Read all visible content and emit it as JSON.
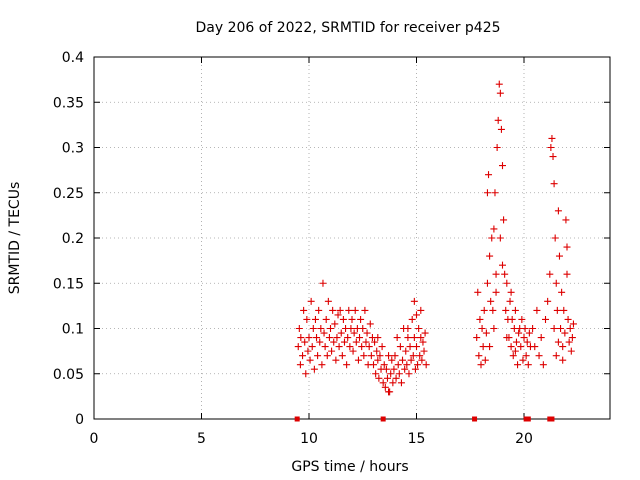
{
  "chart_data": {
    "type": "scatter",
    "title": "Day 206 of 2022, SRMTID for receiver p425",
    "xlabel": "GPS time / hours",
    "ylabel": "SRMTID / TECUs",
    "xlim": [
      0,
      24
    ],
    "ylim": [
      0,
      0.4
    ],
    "xticks": [
      0,
      5,
      10,
      15,
      20
    ],
    "xtick_labels": [
      "0",
      "5",
      "10",
      "15",
      "20"
    ],
    "yticks": [
      0,
      0.05,
      0.1,
      0.15,
      0.2,
      0.25,
      0.3,
      0.35,
      0.4
    ],
    "ytick_labels": [
      "0",
      "0.05",
      "0.1",
      "0.15",
      "0.2",
      "0.25",
      "0.3",
      "0.35",
      "0.4"
    ],
    "grid": true,
    "marker": "+",
    "color": "#dd0000",
    "series": [
      {
        "name": "SRMTID",
        "points": [
          [
            9.5,
            0.08
          ],
          [
            9.55,
            0.1
          ],
          [
            9.6,
            0.06
          ],
          [
            9.62,
            0.09
          ],
          [
            9.7,
            0.07
          ],
          [
            9.75,
            0.12
          ],
          [
            9.8,
            0.085
          ],
          [
            9.85,
            0.05
          ],
          [
            9.9,
            0.11
          ],
          [
            9.95,
            0.075
          ],
          [
            10.0,
            0.09
          ],
          [
            10.05,
            0.065
          ],
          [
            10.1,
            0.13
          ],
          [
            10.15,
            0.08
          ],
          [
            10.2,
            0.1
          ],
          [
            10.25,
            0.055
          ],
          [
            10.3,
            0.11
          ],
          [
            10.35,
            0.09
          ],
          [
            10.4,
            0.07
          ],
          [
            10.45,
            0.12
          ],
          [
            10.5,
            0.085
          ],
          [
            10.55,
            0.1
          ],
          [
            10.6,
            0.06
          ],
          [
            10.65,
            0.15
          ],
          [
            10.7,
            0.095
          ],
          [
            10.75,
            0.08
          ],
          [
            10.8,
            0.11
          ],
          [
            10.85,
            0.07
          ],
          [
            10.9,
            0.13
          ],
          [
            10.95,
            0.09
          ],
          [
            11.0,
            0.1
          ],
          [
            11.05,
            0.075
          ],
          [
            11.1,
            0.12
          ],
          [
            11.15,
            0.085
          ],
          [
            11.2,
            0.105
          ],
          [
            11.25,
            0.065
          ],
          [
            11.3,
            0.09
          ],
          [
            11.35,
            0.115
          ],
          [
            11.4,
            0.08
          ],
          [
            11.45,
            0.12
          ],
          [
            11.5,
            0.095
          ],
          [
            11.55,
            0.07
          ],
          [
            11.6,
            0.11
          ],
          [
            11.65,
            0.085
          ],
          [
            11.7,
            0.1
          ],
          [
            11.75,
            0.06
          ],
          [
            11.8,
            0.09
          ],
          [
            11.85,
            0.12
          ],
          [
            11.9,
            0.08
          ],
          [
            11.95,
            0.1
          ],
          [
            12.0,
            0.11
          ],
          [
            12.05,
            0.075
          ],
          [
            12.1,
            0.095
          ],
          [
            12.15,
            0.12
          ],
          [
            12.2,
            0.085
          ],
          [
            12.25,
            0.1
          ],
          [
            12.3,
            0.065
          ],
          [
            12.35,
            0.09
          ],
          [
            12.4,
            0.11
          ],
          [
            12.45,
            0.08
          ],
          [
            12.5,
            0.1
          ],
          [
            12.55,
            0.07
          ],
          [
            12.6,
            0.12
          ],
          [
            12.65,
            0.085
          ],
          [
            12.7,
            0.095
          ],
          [
            12.75,
            0.06
          ],
          [
            12.8,
            0.08
          ],
          [
            12.85,
            0.105
          ],
          [
            12.9,
            0.07
          ],
          [
            12.95,
            0.09
          ],
          [
            13.0,
            0.06
          ],
          [
            13.05,
            0.085
          ],
          [
            13.1,
            0.05
          ],
          [
            13.15,
            0.075
          ],
          [
            13.2,
            0.065
          ],
          [
            13.25,
            0.045
          ],
          [
            13.3,
            0.07
          ],
          [
            13.35,
            0.055
          ],
          [
            13.4,
            0.08
          ],
          [
            13.45,
            0.04
          ],
          [
            13.5,
            0.06
          ],
          [
            13.55,
            0.035
          ],
          [
            13.6,
            0.055
          ],
          [
            13.65,
            0.045
          ],
          [
            13.7,
            0.07
          ],
          [
            13.75,
            0.03
          ],
          [
            13.8,
            0.05
          ],
          [
            13.85,
            0.065
          ],
          [
            13.9,
            0.04
          ],
          [
            13.95,
            0.055
          ],
          [
            14.0,
            0.07
          ],
          [
            14.05,
            0.045
          ],
          [
            14.1,
            0.09
          ],
          [
            14.15,
            0.06
          ],
          [
            14.2,
            0.05
          ],
          [
            14.25,
            0.08
          ],
          [
            14.3,
            0.04
          ],
          [
            14.35,
            0.065
          ],
          [
            14.4,
            0.1
          ],
          [
            14.45,
            0.055
          ],
          [
            14.5,
            0.075
          ],
          [
            14.55,
            0.06
          ],
          [
            14.6,
            0.09
          ],
          [
            14.65,
            0.05
          ],
          [
            14.7,
            0.08
          ],
          [
            14.75,
            0.065
          ],
          [
            14.8,
            0.11
          ],
          [
            14.85,
            0.07
          ],
          [
            14.9,
            0.09
          ],
          [
            14.95,
            0.055
          ],
          [
            15.0,
            0.08
          ],
          [
            15.05,
            0.06
          ],
          [
            15.1,
            0.1
          ],
          [
            15.15,
            0.07
          ],
          [
            15.2,
            0.09
          ],
          [
            15.25,
            0.065
          ],
          [
            15.3,
            0.085
          ],
          [
            15.35,
            0.075
          ],
          [
            15.4,
            0.095
          ],
          [
            15.45,
            0.06
          ],
          [
            14.9,
            0.13
          ],
          [
            15.0,
            0.115
          ],
          [
            15.2,
            0.12
          ],
          [
            14.6,
            0.1
          ],
          [
            13.7,
            0.03
          ],
          [
            13.2,
            0.09
          ],
          [
            17.8,
            0.09
          ],
          [
            17.85,
            0.14
          ],
          [
            17.9,
            0.07
          ],
          [
            17.95,
            0.11
          ],
          [
            18.0,
            0.06
          ],
          [
            18.05,
            0.1
          ],
          [
            18.1,
            0.08
          ],
          [
            18.15,
            0.12
          ],
          [
            18.2,
            0.065
          ],
          [
            18.25,
            0.095
          ],
          [
            18.3,
            0.15
          ],
          [
            18.35,
            0.27
          ],
          [
            18.4,
            0.18
          ],
          [
            18.45,
            0.13
          ],
          [
            18.5,
            0.2
          ],
          [
            18.55,
            0.12
          ],
          [
            18.6,
            0.21
          ],
          [
            18.65,
            0.25
          ],
          [
            18.7,
            0.16
          ],
          [
            18.75,
            0.3
          ],
          [
            18.8,
            0.33
          ],
          [
            18.85,
            0.37
          ],
          [
            18.9,
            0.36
          ],
          [
            18.95,
            0.32
          ],
          [
            19.0,
            0.28
          ],
          [
            19.05,
            0.22
          ],
          [
            19.1,
            0.16
          ],
          [
            19.15,
            0.12
          ],
          [
            19.2,
            0.15
          ],
          [
            19.25,
            0.11
          ],
          [
            19.3,
            0.09
          ],
          [
            19.35,
            0.13
          ],
          [
            19.4,
            0.08
          ],
          [
            19.45,
            0.11
          ],
          [
            19.5,
            0.07
          ],
          [
            19.55,
            0.1
          ],
          [
            19.6,
            0.12
          ],
          [
            19.65,
            0.085
          ],
          [
            19.7,
            0.06
          ],
          [
            19.75,
            0.095
          ],
          [
            18.3,
            0.25
          ],
          [
            18.4,
            0.08
          ],
          [
            18.6,
            0.1
          ],
          [
            18.7,
            0.14
          ],
          [
            18.9,
            0.2
          ],
          [
            19.0,
            0.17
          ],
          [
            19.2,
            0.09
          ],
          [
            19.4,
            0.14
          ],
          [
            19.6,
            0.075
          ],
          [
            19.8,
            0.1
          ],
          [
            19.85,
            0.08
          ],
          [
            19.9,
            0.11
          ],
          [
            19.95,
            0.065
          ],
          [
            20.0,
            0.09
          ],
          [
            20.05,
            0.1
          ],
          [
            20.1,
            0.07
          ],
          [
            20.15,
            0.085
          ],
          [
            20.2,
            0.06
          ],
          [
            20.25,
            0.095
          ],
          [
            20.3,
            0.08
          ],
          [
            20.4,
            0.1
          ],
          [
            20.5,
            0.08
          ],
          [
            20.6,
            0.12
          ],
          [
            20.7,
            0.07
          ],
          [
            20.8,
            0.09
          ],
          [
            20.9,
            0.06
          ],
          [
            21.0,
            0.11
          ],
          [
            21.1,
            0.13
          ],
          [
            21.2,
            0.16
          ],
          [
            21.25,
            0.3
          ],
          [
            21.3,
            0.31
          ],
          [
            21.35,
            0.29
          ],
          [
            21.4,
            0.26
          ],
          [
            21.45,
            0.2
          ],
          [
            21.5,
            0.15
          ],
          [
            21.55,
            0.12
          ],
          [
            21.6,
            0.23
          ],
          [
            21.65,
            0.18
          ],
          [
            21.7,
            0.1
          ],
          [
            21.75,
            0.14
          ],
          [
            21.8,
            0.08
          ],
          [
            21.85,
            0.12
          ],
          [
            21.9,
            0.095
          ],
          [
            21.95,
            0.22
          ],
          [
            22.0,
            0.19
          ],
          [
            22.05,
            0.11
          ],
          [
            22.1,
            0.085
          ],
          [
            22.15,
            0.1
          ],
          [
            22.2,
            0.075
          ],
          [
            22.25,
            0.09
          ],
          [
            22.3,
            0.105
          ],
          [
            21.8,
            0.065
          ],
          [
            21.5,
            0.07
          ],
          [
            21.4,
            0.1
          ],
          [
            22.0,
            0.16
          ],
          [
            21.6,
            0.085
          ]
        ]
      }
    ],
    "zero_markers_x": [
      9.45,
      13.45,
      17.7,
      20.1,
      20.2,
      21.2,
      21.3
    ]
  }
}
